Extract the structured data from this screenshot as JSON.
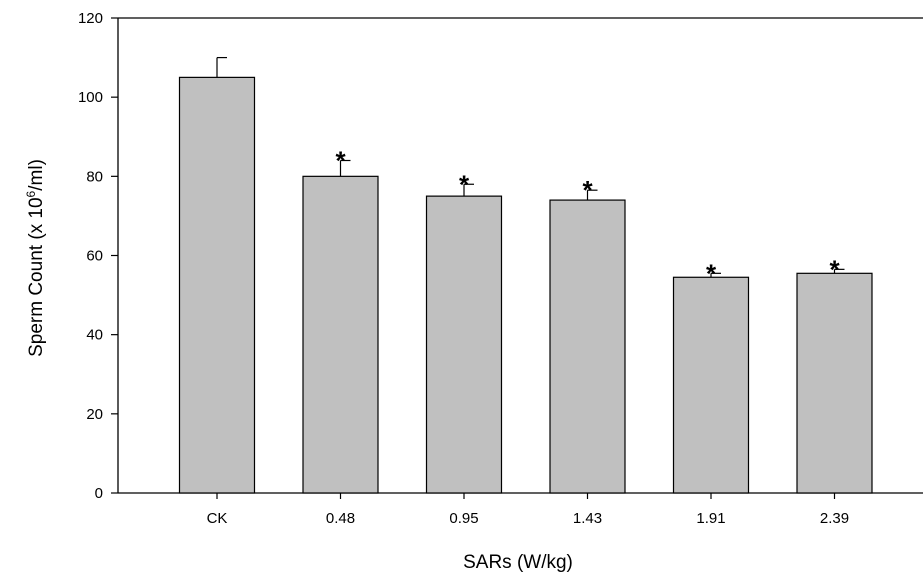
{
  "chart_data": {
    "type": "bar",
    "title": "",
    "xlabel": "SARs (W/kg)",
    "ylabel": {
      "prefix": "Sperm Count (x 10",
      "superscript": "6",
      "suffix": "/ml)"
    },
    "categories": [
      "CK",
      "0.48",
      "0.95",
      "1.43",
      "1.91",
      "2.39"
    ],
    "values": [
      105,
      80,
      75,
      74,
      54.5,
      55.5
    ],
    "error_upper": [
      5,
      4,
      3,
      2.5,
      1,
      1
    ],
    "significance_marker": "*",
    "significant": [
      false,
      true,
      true,
      true,
      true,
      true
    ],
    "ylim": [
      0,
      120
    ],
    "yticks": [
      0,
      20,
      40,
      60,
      80,
      100,
      120
    ],
    "grid": false,
    "bar_color": "#c0c0c0",
    "edge_color": "#000000"
  }
}
